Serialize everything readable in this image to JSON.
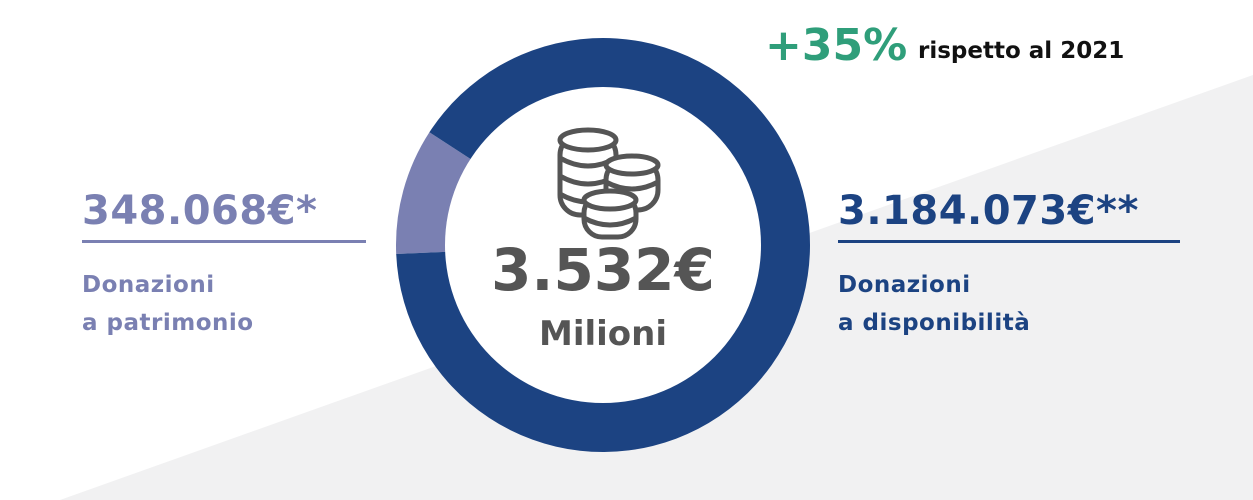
{
  "chart_data": {
    "type": "donut",
    "categories": [
      "Donazioni\na patrimonio",
      "Donazioni\na disponibilità"
    ],
    "values": [
      348068,
      3184073
    ],
    "value_labels": [
      "348.068€*",
      "3.184.073€**"
    ],
    "colors": [
      "#7a80b2",
      "#1c4382"
    ],
    "center_label": "3.532€",
    "center_sublabel": "Milioni",
    "growth": "+35%",
    "growth_note": "rispetto al 2021",
    "growth_color": "#2f9e7a"
  }
}
